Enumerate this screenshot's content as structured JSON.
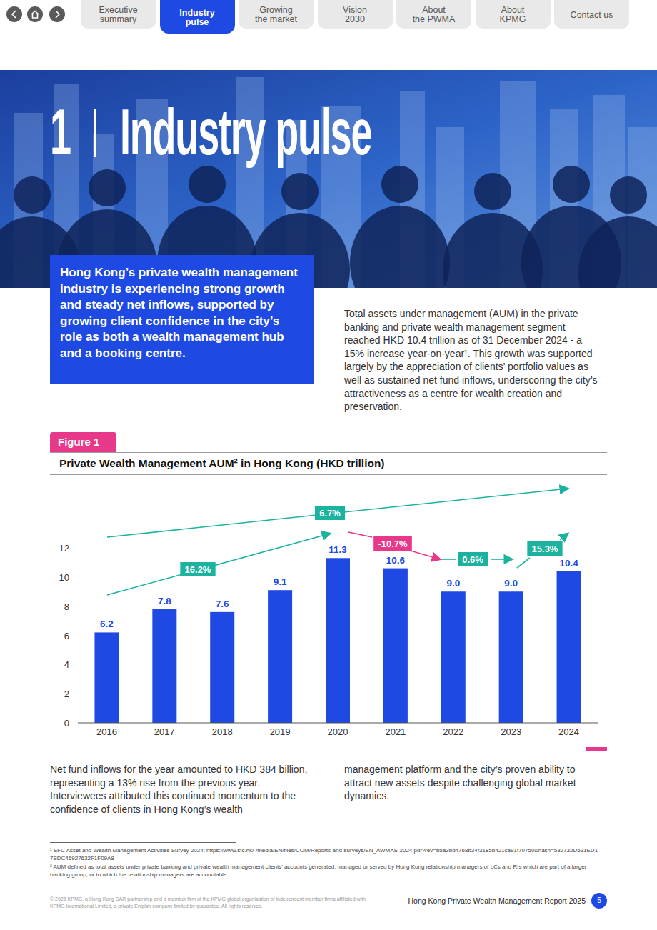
{
  "page": {
    "nav": [
      "Executive\nsummary",
      "Industry\npulse",
      "Growing\nthe market",
      "Vision\n2030",
      "About\nthe PWMA",
      "About\nKPMG",
      "Contact us"
    ],
    "section_number": "1",
    "section_title": "Industry pulse",
    "highlight": "Hong Kong’s private wealth management industry is experiencing strong growth and steady net inflows, supported by growing client confidence in the city’s role as both a wealth management hub and a booking centre.",
    "intro": "Total assets under management (AUM) in the private banking and private wealth management segment reached HKD 10.4 trillion as of 31 December 2024 - a 15% increase year-on-year¹. This growth was supported largely by the appreciation of clients’ portfolio values as well as sustained net fund inflows, underscoring the city’s attractiveness as a centre for wealth creation and preservation.",
    "figure_label": "Figure 1",
    "body_left": "Net fund inflows for the year amounted to HKD 384 billion, representing a 13% rise from the previous year. Interviewees attributed this continued momentum to the confidence of clients in Hong Kong’s wealth",
    "body_right": "management platform and the city’s proven ability to attract new assets despite challenging global market dynamics.",
    "footnotes": [
      "¹ SFC Asset and Wealth Management Activities Survey 2024: https://www.sfc.hk/-/media/EN/files/COM/Reports-and-surveys/EN_AWMAS-2024.pdf?rev=b5a3bd4768b34f3185b421ca91f70750&hash=532732D531ED17BDC46927632F1F09A8",
      "² AUM defined as total assets under private banking and private wealth management clients’ accounts generated, managed or served by Hong Kong relationship managers of LCs and RIs which are part of a larger banking group, or to which the relationship managers are accountable"
    ],
    "copyright": "© 2025 KPMG, a Hong Kong SAR partnership and a member firm of the KPMG global organisation of independent member firms affiliated with KPMG International Limited, a private English company limited by guarantee. All rights reserved.",
    "report_title": "Hong Kong Private Wealth Management Report 2025",
    "page_number": 5
  },
  "chart_data": {
    "type": "bar",
    "title": "Private Wealth Management AUM² in Hong Kong (HKD trillion)",
    "categories": [
      "2016",
      "2017",
      "2018",
      "2019",
      "2020",
      "2021",
      "2022",
      "2023",
      "2024"
    ],
    "values": [
      6.2,
      7.8,
      7.6,
      9.1,
      11.3,
      10.6,
      9.0,
      9.0,
      10.4
    ],
    "value_labels": [
      "6.2",
      "7.8",
      "7.6",
      "9.1",
      "11.3",
      "10.6",
      "9.0",
      "9.0",
      "10.4"
    ],
    "color": "#1e49e2",
    "ylim": [
      0,
      12
    ],
    "yticks": [
      0,
      2,
      4,
      6,
      8,
      10,
      12
    ],
    "grid": false,
    "data_labels": true,
    "annotations": [
      {
        "text": "16.2%",
        "color": "#1bb39d"
      },
      {
        "text": "6.7%",
        "color": "#1bb39d"
      },
      {
        "text": "-10.7%",
        "color": "#e8388a"
      },
      {
        "text": "0.6%",
        "color": "#1bb39d"
      },
      {
        "text": "15.3%",
        "color": "#1bb39d"
      }
    ]
  }
}
